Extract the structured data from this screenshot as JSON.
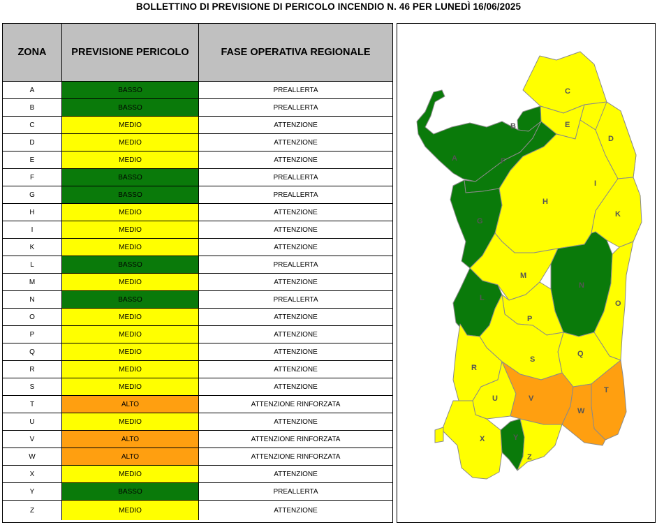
{
  "title": "BOLLETTINO DI PREVISIONE DI PERICOLO INCENDIO N. 46 PER LUNEDÌ 16/06/2025",
  "table": {
    "headers": [
      "ZONA",
      "PREVISIONE PERICOLO",
      "FASE OPERATIVA REGIONALE"
    ],
    "rows": [
      {
        "zona": "A",
        "pericolo": "BASSO",
        "fase": "PREALLERTA"
      },
      {
        "zona": "B",
        "pericolo": "BASSO",
        "fase": "PREALLERTA"
      },
      {
        "zona": "C",
        "pericolo": "MEDIO",
        "fase": "ATTENZIONE"
      },
      {
        "zona": "D",
        "pericolo": "MEDIO",
        "fase": "ATTENZIONE"
      },
      {
        "zona": "E",
        "pericolo": "MEDIO",
        "fase": "ATTENZIONE"
      },
      {
        "zona": "F",
        "pericolo": "BASSO",
        "fase": "PREALLERTA"
      },
      {
        "zona": "G",
        "pericolo": "BASSO",
        "fase": "PREALLERTA"
      },
      {
        "zona": "H",
        "pericolo": "MEDIO",
        "fase": "ATTENZIONE"
      },
      {
        "zona": "I",
        "pericolo": "MEDIO",
        "fase": "ATTENZIONE"
      },
      {
        "zona": "K",
        "pericolo": "MEDIO",
        "fase": "ATTENZIONE"
      },
      {
        "zona": "L",
        "pericolo": "BASSO",
        "fase": "PREALLERTA"
      },
      {
        "zona": "M",
        "pericolo": "MEDIO",
        "fase": "ATTENZIONE"
      },
      {
        "zona": "N",
        "pericolo": "BASSO",
        "fase": "PREALLERTA"
      },
      {
        "zona": "O",
        "pericolo": "MEDIO",
        "fase": "ATTENZIONE"
      },
      {
        "zona": "P",
        "pericolo": "MEDIO",
        "fase": "ATTENZIONE"
      },
      {
        "zona": "Q",
        "pericolo": "MEDIO",
        "fase": "ATTENZIONE"
      },
      {
        "zona": "R",
        "pericolo": "MEDIO",
        "fase": "ATTENZIONE"
      },
      {
        "zona": "S",
        "pericolo": "MEDIO",
        "fase": "ATTENZIONE"
      },
      {
        "zona": "T",
        "pericolo": "ALTO",
        "fase": "ATTENZIONE RINFORZATA"
      },
      {
        "zona": "U",
        "pericolo": "MEDIO",
        "fase": "ATTENZIONE"
      },
      {
        "zona": "V",
        "pericolo": "ALTO",
        "fase": "ATTENZIONE RINFORZATA"
      },
      {
        "zona": "W",
        "pericolo": "ALTO",
        "fase": "ATTENZIONE RINFORZATA"
      },
      {
        "zona": "X",
        "pericolo": "MEDIO",
        "fase": "ATTENZIONE"
      },
      {
        "zona": "Y",
        "pericolo": "BASSO",
        "fase": "PREALLERTA"
      },
      {
        "zona": "Z",
        "pericolo": "MEDIO",
        "fase": "ATTENZIONE"
      }
    ]
  },
  "colors": {
    "BASSO": "#0a7a0a",
    "MEDIO": "#ffff00",
    "ALTO": "#ff9f10",
    "header_bg": "#c0c0c0",
    "map_border": "#8a8a8a",
    "map_label": "#555555"
  }
}
